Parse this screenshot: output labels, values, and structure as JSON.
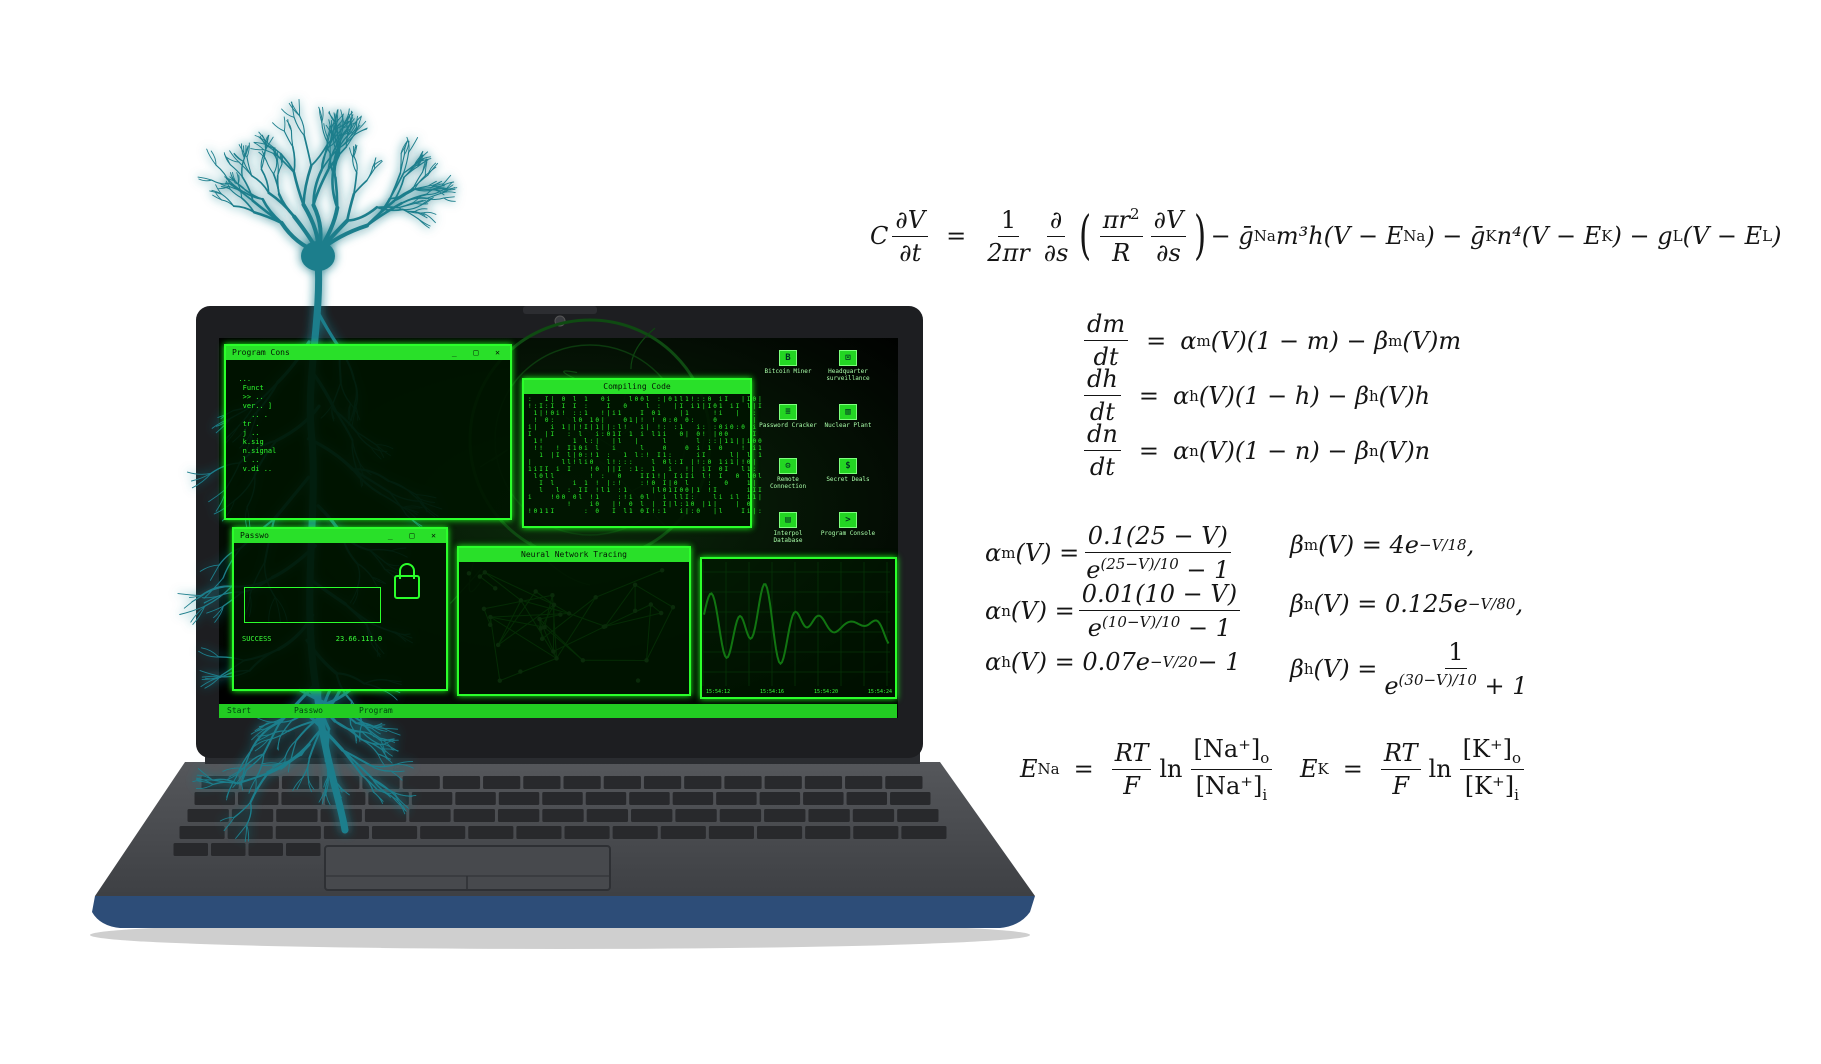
{
  "equations": {
    "cable": {
      "lhs_C": "C",
      "dV": "∂V",
      "dt": "∂t",
      "eq": "=",
      "one": "1",
      "two_pi_r": "2πr",
      "d": "∂",
      "ds": "∂s",
      "pir2": "πr",
      "R": "R",
      "dV2": "∂V",
      "ds2": "∂s",
      "rhs_rest": "− ḡ",
      "na_term": "m³h(V − E",
      "k_term": ") − ḡ",
      "k_term2": "n⁴(V − E",
      "l_term": ") − g",
      "l_term2": "(V − E",
      "close": ")",
      "sub_Na": "Na",
      "sub_K": "K",
      "sub_L": "L"
    },
    "gates": [
      {
        "num": "dm",
        "den": "dt",
        "rhs": "α",
        "sub": "m",
        "rest": "(V)(1 − m) − β",
        "sub2": "m",
        "tail": "(V)m"
      },
      {
        "num": "dh",
        "den": "dt",
        "rhs": "α",
        "sub": "h",
        "rest": "(V)(1 − h) − β",
        "sub2": "h",
        "tail": "(V)h"
      },
      {
        "num": "dn",
        "den": "dt",
        "rhs": "α",
        "sub": "n",
        "rest": "(V)(1 − n) − β",
        "sub2": "n",
        "tail": "(V)n"
      }
    ],
    "rates": {
      "alpha_m": {
        "lhs": "α",
        "sub": "m",
        "arg": "(V) =",
        "num": "0.1(25 − V)",
        "den": "e",
        "den_sup": "(25−V)/10",
        "den_tail": " − 1"
      },
      "alpha_n": {
        "lhs": "α",
        "sub": "n",
        "arg": "(V) =",
        "num": "0.01(10 − V)",
        "den": "e",
        "den_sup": "(10−V)/10",
        "den_tail": " − 1"
      },
      "alpha_h": {
        "lhs": "α",
        "sub": "h",
        "arg": "(V) = 0.07e",
        "sup": "−V/20",
        "tail": " − 1"
      },
      "beta_m": {
        "lhs": "β",
        "sub": "m",
        "arg": "(V) = 4e",
        "sup": "−V/18",
        "tail": ","
      },
      "beta_n": {
        "lhs": "β",
        "sub": "n",
        "arg": "(V) = 0.125e",
        "sup": "−V/80",
        "tail": ","
      },
      "beta_h": {
        "lhs": "β",
        "sub": "h",
        "arg": "(V) =",
        "num": "1",
        "den": "e",
        "den_sup": "(30−V)/10",
        "den_tail": " + 1"
      }
    },
    "nernst": {
      "na": {
        "lhs": "E",
        "sub": "Na",
        "eq": "=",
        "num": "RT",
        "den": "F",
        "ln": "ln",
        "conc_num": "[Na⁺]",
        "sub_o": "o",
        "conc_den": "[Na⁺]",
        "sub_i": "i"
      },
      "k": {
        "lhs": "E",
        "sub": "K",
        "eq": "=",
        "num": "RT",
        "den": "F",
        "ln": "ln",
        "conc_num": "[K⁺]",
        "sub_o": "o",
        "conc_den": "[K⁺]",
        "sub_i": "i"
      }
    }
  },
  "screen": {
    "windows": {
      "console": "Program Cons",
      "compiling": "Compiling Code",
      "password": "Passwo",
      "neural": "Neural Network Tracing"
    },
    "desktop_icons": [
      {
        "glyph": "B",
        "label": "Bitcoin Miner"
      },
      {
        "glyph": "⊡",
        "label": "Headquarter surveillance"
      },
      {
        "glyph": "≡",
        "label": "Password Cracker"
      },
      {
        "glyph": "▥",
        "label": "Nuclear Plant"
      },
      {
        "glyph": "⚙",
        "label": "Remote Connection"
      },
      {
        "glyph": "$",
        "label": "Secret Deals"
      },
      {
        "glyph": "▤",
        "label": "Interpol Database"
      },
      {
        "glyph": ">",
        "label": "Program Console"
      }
    ],
    "taskbar": {
      "start": "Start",
      "item1": "Passwo",
      "item2": "Program"
    },
    "graph_times": [
      "15:54:12",
      "15:54:16",
      "15:54:20",
      "15:54:24"
    ],
    "password_status": "SUCCESS",
    "password_ip": "23.66.111.0"
  },
  "colors": {
    "screen_green": "#2bff2b",
    "neuron": "#1d7e8c",
    "laptop_body": "#4a4c50",
    "laptop_edge": "#2d4d78"
  }
}
